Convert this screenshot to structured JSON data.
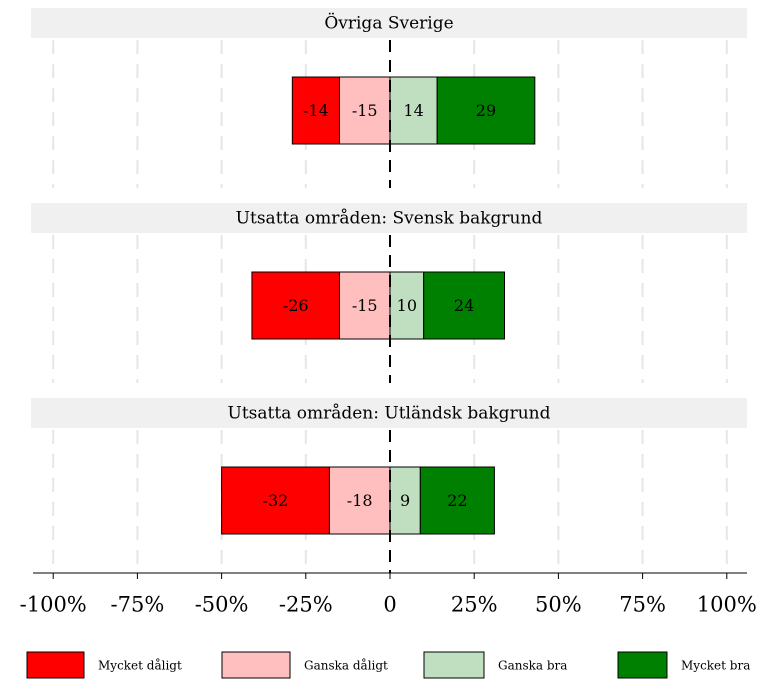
{
  "chart_data": {
    "type": "bar",
    "categories": [
      "Övriga Sverige",
      "Utsatta områden: Svensk bakgrund",
      "Utsatta områden: Utländsk bakgrund"
    ],
    "series": [
      {
        "name": "Mycket dåligt",
        "color": "#ff0000",
        "values": [
          -14,
          -26,
          -32
        ]
      },
      {
        "name": "Ganska dåligt",
        "color": "#ffbfbf",
        "values": [
          -15,
          -15,
          -18
        ]
      },
      {
        "name": "Ganska bra",
        "color": "#c0dfc0",
        "values": [
          14,
          10,
          9
        ]
      },
      {
        "name": "Mycket bra",
        "color": "#008000",
        "values": [
          29,
          24,
          22
        ]
      }
    ],
    "xlim": [
      -106,
      106
    ],
    "xticks": [
      {
        "value": -100,
        "label": "-100%"
      },
      {
        "value": -75,
        "label": "-75%"
      },
      {
        "value": -50,
        "label": "-50%"
      },
      {
        "value": -25,
        "label": "-25%"
      },
      0,
      {
        "value": 25,
        "label": "25%"
      },
      {
        "value": 50,
        "label": "50%"
      },
      {
        "value": 75,
        "label": "75%"
      },
      {
        "value": 100,
        "label": "100%"
      }
    ],
    "grid": true,
    "legend": "bottom"
  }
}
